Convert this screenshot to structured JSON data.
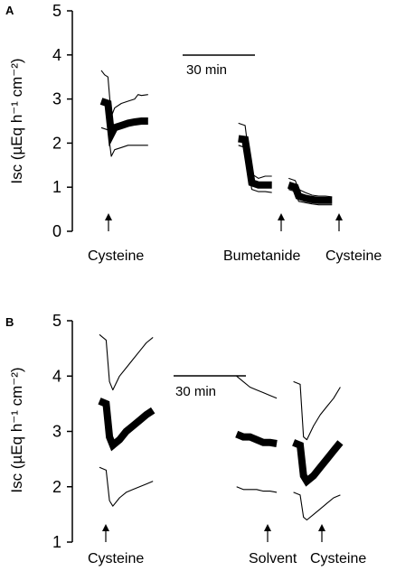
{
  "chart_data": [
    {
      "type": "line",
      "panel_label": "A",
      "ylabel": "Isc (µEq h⁻¹ cm⁻²)",
      "ylim": [
        0,
        5
      ],
      "yticks": [
        "0",
        "1",
        "2",
        "3",
        "4",
        "5"
      ],
      "scalebar_label": "30 min",
      "stimuli": [
        "Cysteine",
        "Bumetanide",
        "Cysteine"
      ],
      "segments": [
        {
          "mean": [
            [
              0,
              2.95
            ],
            [
              2,
              2.9
            ],
            [
              3,
              2.2
            ],
            [
              4,
              2.35
            ],
            [
              6,
              2.4
            ],
            [
              8,
              2.45
            ],
            [
              10,
              2.48
            ],
            [
              12,
              2.5
            ],
            [
              14,
              2.5
            ]
          ],
          "upper": [
            [
              0,
              3.65
            ],
            [
              1,
              3.55
            ],
            [
              2,
              3.5
            ],
            [
              3,
              2.6
            ],
            [
              4,
              2.8
            ],
            [
              6,
              2.9
            ],
            [
              8,
              2.95
            ],
            [
              10,
              3.0
            ],
            [
              11,
              3.1
            ],
            [
              12,
              3.08
            ],
            [
              14,
              3.1
            ]
          ],
          "lower": [
            [
              0,
              2.35
            ],
            [
              2,
              2.3
            ],
            [
              3,
              1.7
            ],
            [
              4,
              1.85
            ],
            [
              6,
              1.9
            ],
            [
              8,
              1.95
            ],
            [
              10,
              1.95
            ],
            [
              12,
              1.95
            ],
            [
              14,
              1.95
            ]
          ]
        },
        {
          "mean": [
            [
              41,
              2.1
            ],
            [
              43,
              2.08
            ],
            [
              44,
              1.6
            ],
            [
              45,
              1.1
            ],
            [
              47,
              1.05
            ],
            [
              49,
              1.05
            ],
            [
              51,
              1.05
            ]
          ],
          "upper": [
            [
              41,
              2.45
            ],
            [
              43,
              2.4
            ],
            [
              44,
              1.8
            ],
            [
              45,
              1.3
            ],
            [
              47,
              1.2
            ],
            [
              49,
              1.25
            ],
            [
              51,
              1.25
            ]
          ],
          "lower": [
            [
              41,
              1.95
            ],
            [
              43,
              1.9
            ],
            [
              44,
              1.4
            ],
            [
              45,
              0.95
            ],
            [
              47,
              0.9
            ],
            [
              49,
              0.9
            ],
            [
              51,
              0.88
            ]
          ]
        },
        {
          "mean": [
            [
              56,
              1.05
            ],
            [
              58,
              1.0
            ],
            [
              59,
              0.8
            ],
            [
              61,
              0.75
            ],
            [
              63,
              0.72
            ],
            [
              65,
              0.7
            ],
            [
              67,
              0.7
            ],
            [
              69,
              0.7
            ]
          ],
          "upper": [
            [
              56,
              1.2
            ],
            [
              58,
              1.15
            ],
            [
              59,
              0.95
            ],
            [
              61,
              0.88
            ],
            [
              63,
              0.82
            ],
            [
              65,
              0.8
            ],
            [
              67,
              0.8
            ],
            [
              69,
              0.78
            ]
          ],
          "lower": [
            [
              56,
              0.95
            ],
            [
              58,
              0.9
            ],
            [
              59,
              0.68
            ],
            [
              61,
              0.65
            ],
            [
              63,
              0.62
            ],
            [
              65,
              0.6
            ],
            [
              67,
              0.6
            ],
            [
              69,
              0.6
            ]
          ]
        }
      ]
    },
    {
      "type": "line",
      "panel_label": "B",
      "ylabel": "Isc (µEq h⁻¹ cm⁻²)",
      "ylim": [
        1,
        5
      ],
      "yticks": [
        "1",
        "2",
        "3",
        "4",
        "5"
      ],
      "scalebar_label": "30 min",
      "stimuli": [
        "Cysteine",
        "Solvent",
        "Cysteine"
      ],
      "segments": [
        {
          "mean": [
            [
              0,
              3.55
            ],
            [
              2,
              3.5
            ],
            [
              3,
              2.9
            ],
            [
              4,
              2.75
            ],
            [
              6,
              2.85
            ],
            [
              8,
              3.0
            ],
            [
              10,
              3.1
            ],
            [
              12,
              3.2
            ],
            [
              14,
              3.3
            ],
            [
              16,
              3.38
            ]
          ],
          "upper": [
            [
              0,
              4.75
            ],
            [
              1,
              4.7
            ],
            [
              2,
              4.65
            ],
            [
              3,
              3.9
            ],
            [
              4,
              3.75
            ],
            [
              6,
              4.0
            ],
            [
              8,
              4.15
            ],
            [
              10,
              4.3
            ],
            [
              12,
              4.45
            ],
            [
              14,
              4.6
            ],
            [
              16,
              4.7
            ]
          ],
          "lower": [
            [
              0,
              2.35
            ],
            [
              2,
              2.3
            ],
            [
              3,
              1.75
            ],
            [
              4,
              1.65
            ],
            [
              6,
              1.8
            ],
            [
              8,
              1.9
            ],
            [
              10,
              1.95
            ],
            [
              12,
              2.0
            ],
            [
              14,
              2.05
            ],
            [
              16,
              2.1
            ]
          ]
        },
        {
          "mean": [
            [
              41,
              2.95
            ],
            [
              43,
              2.9
            ],
            [
              45,
              2.9
            ],
            [
              47,
              2.85
            ],
            [
              49,
              2.8
            ],
            [
              51,
              2.8
            ],
            [
              53,
              2.78
            ]
          ],
          "upper": [
            [
              41,
              4.0
            ],
            [
              43,
              3.9
            ],
            [
              45,
              3.8
            ],
            [
              47,
              3.75
            ],
            [
              49,
              3.7
            ],
            [
              51,
              3.65
            ],
            [
              53,
              3.6
            ]
          ],
          "lower": [
            [
              41,
              2.0
            ],
            [
              43,
              1.95
            ],
            [
              45,
              1.95
            ],
            [
              47,
              1.95
            ],
            [
              49,
              1.92
            ],
            [
              51,
              1.92
            ],
            [
              53,
              1.9
            ]
          ]
        },
        {
          "mean": [
            [
              58,
              2.8
            ],
            [
              60,
              2.75
            ],
            [
              61,
              2.2
            ],
            [
              62,
              2.1
            ],
            [
              64,
              2.2
            ],
            [
              66,
              2.35
            ],
            [
              68,
              2.5
            ],
            [
              70,
              2.65
            ],
            [
              72,
              2.8
            ]
          ],
          "upper": [
            [
              58,
              3.9
            ],
            [
              60,
              3.85
            ],
            [
              61,
              2.9
            ],
            [
              62,
              2.85
            ],
            [
              64,
              3.1
            ],
            [
              66,
              3.3
            ],
            [
              68,
              3.45
            ],
            [
              70,
              3.6
            ],
            [
              72,
              3.8
            ]
          ],
          "lower": [
            [
              58,
              1.9
            ],
            [
              60,
              1.85
            ],
            [
              61,
              1.45
            ],
            [
              62,
              1.4
            ],
            [
              64,
              1.5
            ],
            [
              66,
              1.6
            ],
            [
              68,
              1.7
            ],
            [
              70,
              1.8
            ],
            [
              72,
              1.85
            ]
          ]
        }
      ]
    }
  ]
}
